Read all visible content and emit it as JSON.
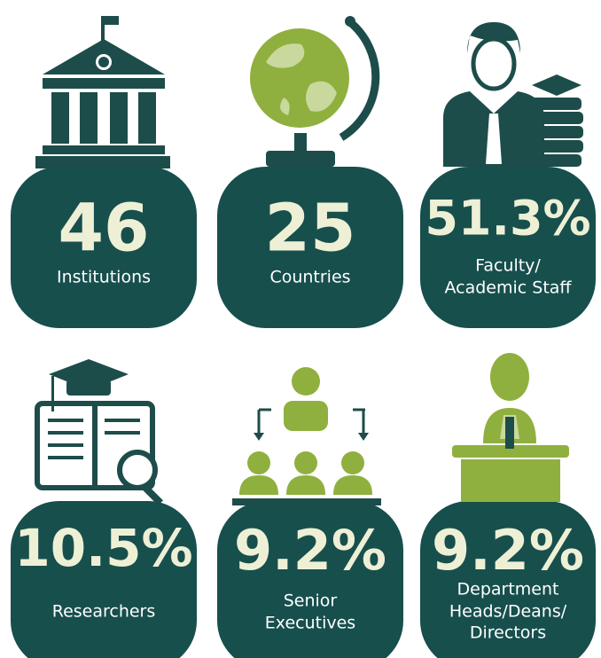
{
  "items": [
    {
      "value": "46",
      "label": [
        "Institutions"
      ]
    },
    {
      "value": "25",
      "label": [
        "Countries"
      ]
    },
    {
      "value": "51.3%",
      "label": [
        "Faculty/",
        "Academic Staff"
      ]
    },
    {
      "value": "10.5%",
      "label": [
        "Researchers"
      ]
    },
    {
      "value": "9.2%",
      "label": [
        "Senior",
        "Executives"
      ]
    },
    {
      "value": "9.2%",
      "label": [
        "Department",
        "Heads/Deans/",
        "Directors"
      ]
    }
  ]
}
